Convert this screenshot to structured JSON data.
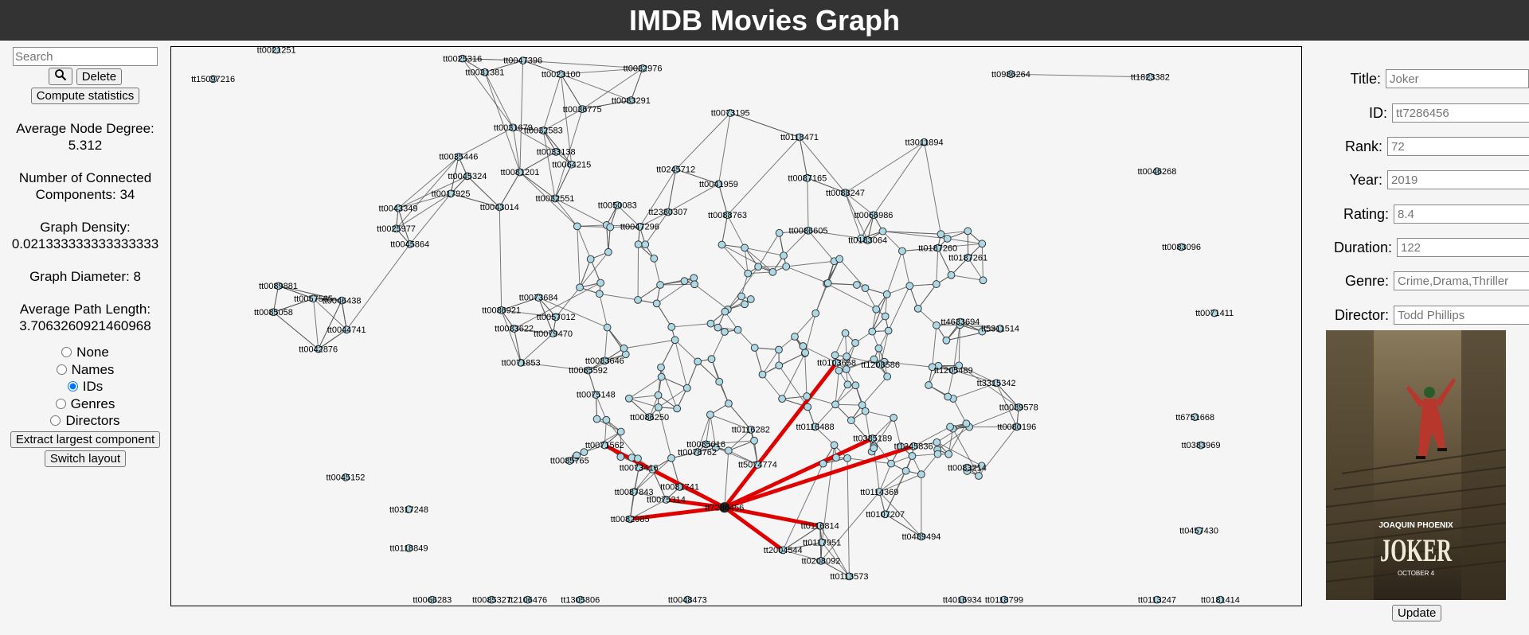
{
  "header": {
    "title": "IMDB Movies Graph"
  },
  "sidebar": {
    "search_placeholder": "Search",
    "delete": "Delete",
    "compute": "Compute statistics",
    "stats": [
      {
        "label": "Average Node Degree:",
        "value": "5.312"
      },
      {
        "label": "Number of Connected Components:",
        "value": "34"
      },
      {
        "label": "Graph Density:",
        "value": "0.021333333333333333"
      },
      {
        "label": "Graph Diameter:",
        "value": "8"
      },
      {
        "label": "Average Path Length:",
        "value": "3.7063260921460968"
      }
    ],
    "label_options": [
      "None",
      "Names",
      "IDs",
      "Genres",
      "Directors"
    ],
    "selected_option_index": 2,
    "extract": "Extract largest component",
    "switch": "Switch layout"
  },
  "graph": {
    "nodes": [
      "tt15097216",
      "tt0021251",
      "tt0025316",
      "tt0031381",
      "tt0047396",
      "tt0023100",
      "tt0032976",
      "tt0083291",
      "tt0036775",
      "tt0073195",
      "tt0118471",
      "tt3011894",
      "tt0046268",
      "tt1823382",
      "tt0986264",
      "tt0035446",
      "tt0045324",
      "tt0017925",
      "tt0043349",
      "tt0025977",
      "tt0045864",
      "tt0043014",
      "tt0032551",
      "tt0064215",
      "tt0081201",
      "tt0033138",
      "tt0031679",
      "tt0032583",
      "tt0050083",
      "tt0245712",
      "tt0041959",
      "tt0087165",
      "tt0088247",
      "tt0066986",
      "tt0088763",
      "tt2380307",
      "tt0047296",
      "tt0086605",
      "tt0183064",
      "tt0187260",
      "tt0187261",
      "tt0083096",
      "tt0089881",
      "tt0057565",
      "tt0046438",
      "tt0085058",
      "tt0044741",
      "tt0042876",
      "tt0071411",
      "tt0086921",
      "tt0073684",
      "tt0057012",
      "tt0079470",
      "tt0083622",
      "tt0071853",
      "tt0083646",
      "tt0085592",
      "tt0075148",
      "tt0086250",
      "tt0071562",
      "tt0085765",
      "tt0045152",
      "tt0317248",
      "tt0118849",
      "tt6751668",
      "tt0383969",
      "tt0457430",
      "tt0089578",
      "tt0080196",
      "tt3315342",
      "tt1205489",
      "tt5311514",
      "tt4633694",
      "tt0083214",
      "tt0489494",
      "tt0107207",
      "tt0385189",
      "tt1345836",
      "tt0114369",
      "tt2004544",
      "tt0208092",
      "tt0113573",
      "tt0117951",
      "tt0116814",
      "tt5074774",
      "tt7286456",
      "tt0087843",
      "tt0082985",
      "tt0075314",
      "tt0073416",
      "tt0081741",
      "tt0078762",
      "tt0085016",
      "tt0116282",
      "tt0116488",
      "tt0103658",
      "tt1208586",
      "tt0066283",
      "tt0085327",
      "tt2106476",
      "tt1305806",
      "tt0048473",
      "tt4016934",
      "tt0118799",
      "tt0113247",
      "tt0181414"
    ]
  },
  "details": {
    "fields": [
      {
        "label": "Title:",
        "value": "Joker"
      },
      {
        "label": "ID:",
        "value": "tt7286456"
      },
      {
        "label": "Rank:",
        "value": "72"
      },
      {
        "label": "Year:",
        "value": "2019"
      },
      {
        "label": "Rating:",
        "value": "8.4"
      },
      {
        "label": "Duration:",
        "value": "122"
      },
      {
        "label": "Genre:",
        "value": "Crime,Drama,Thriller"
      },
      {
        "label": "Director:",
        "value": "Todd Phillips"
      }
    ],
    "poster": {
      "actor": "JOAQUIN PHOENIX",
      "title": "JOKER",
      "date": "OCTOBER 4"
    },
    "update": "Update"
  }
}
